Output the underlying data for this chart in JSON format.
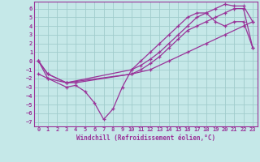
{
  "xlabel": "Windchill (Refroidissement éolien,°C)",
  "xlim": [
    -0.5,
    23.5
  ],
  "ylim": [
    -7.5,
    6.8
  ],
  "yticks": [
    6,
    5,
    4,
    3,
    2,
    1,
    0,
    -1,
    -2,
    -3,
    -4,
    -5,
    -6,
    -7
  ],
  "xticks": [
    0,
    1,
    2,
    3,
    4,
    5,
    6,
    7,
    8,
    9,
    10,
    11,
    12,
    13,
    14,
    15,
    16,
    17,
    18,
    19,
    20,
    21,
    22,
    23
  ],
  "bg_color": "#c5e8e8",
  "grid_color": "#a0cccc",
  "line_color": "#993399",
  "lines": [
    {
      "x": [
        0,
        1,
        3,
        4,
        5,
        6,
        7,
        8,
        9,
        10,
        11,
        12,
        13,
        14,
        15,
        16,
        17,
        18,
        19,
        20,
        21,
        22,
        23
      ],
      "y": [
        0,
        -2,
        -3,
        -2.8,
        -3.5,
        -4.8,
        -6.7,
        -5.5,
        -3,
        -1,
        0,
        1,
        2,
        3,
        4,
        5,
        5.5,
        5.5,
        4.5,
        4.0,
        4.5,
        4.5,
        1.5
      ]
    },
    {
      "x": [
        0,
        1,
        3,
        4,
        10,
        11,
        12,
        13,
        14,
        15,
        16,
        17,
        18,
        19,
        20,
        21,
        22,
        23
      ],
      "y": [
        0,
        -1.5,
        -2.5,
        -2.5,
        -1.5,
        -1.0,
        -0.3,
        0.5,
        1.5,
        2.5,
        3.5,
        4.0,
        4.5,
        5.0,
        5.5,
        6.0,
        6.0,
        1.5
      ]
    },
    {
      "x": [
        0,
        1,
        3,
        10,
        11,
        12,
        13,
        14,
        15,
        16,
        17,
        18,
        19,
        20,
        21,
        22,
        23
      ],
      "y": [
        0,
        -1.5,
        -2.5,
        -1.0,
        -0.5,
        0.2,
        1.0,
        2.0,
        3.0,
        4.0,
        5.0,
        5.5,
        6.0,
        6.5,
        6.3,
        6.3,
        4.5
      ]
    },
    {
      "x": [
        0,
        1,
        3,
        10,
        12,
        14,
        16,
        18,
        20,
        22,
        23
      ],
      "y": [
        -1.5,
        -2.0,
        -2.5,
        -1.5,
        -1.0,
        0.0,
        1.0,
        2.0,
        3.0,
        4.0,
        4.5
      ]
    }
  ]
}
